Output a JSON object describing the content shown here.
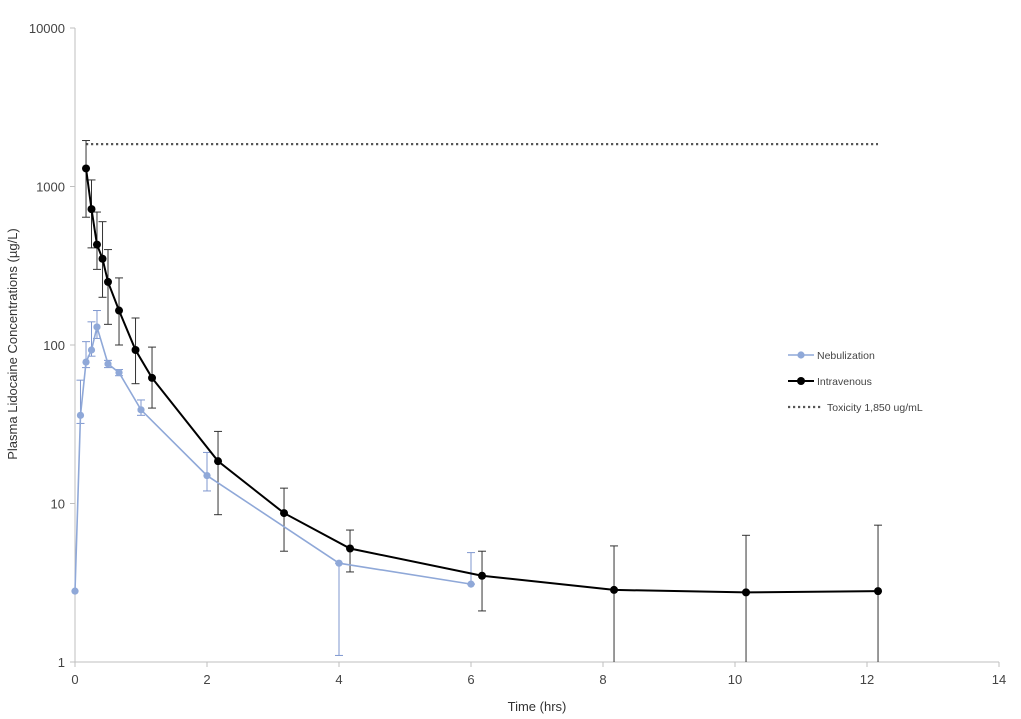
{
  "chart_data": {
    "type": "line",
    "title": "",
    "xlabel": "Time (hrs)",
    "ylabel": "Plasma Lidocaine Concentrations (µg/L)",
    "xlim": [
      0,
      14
    ],
    "ylim": [
      1,
      10000
    ],
    "yscale": "log",
    "grid": false,
    "legend_position": "right",
    "x_ticks": [
      "0",
      "2",
      "4",
      "6",
      "8",
      "10",
      "12",
      "14"
    ],
    "x_tick_values": [
      0,
      2,
      4,
      6,
      8,
      10,
      12,
      14
    ],
    "y_ticks": [
      "1",
      "10",
      "100",
      "1000",
      "10000"
    ],
    "y_tick_values": [
      1,
      10,
      100,
      1000,
      10000
    ],
    "series": [
      {
        "name": "Nebulization",
        "color": "#8FA8D8",
        "x": [
          0,
          0.083,
          0.167,
          0.25,
          0.333,
          0.5,
          0.667,
          1,
          2,
          4,
          6
        ],
        "y": [
          2.8,
          36,
          78,
          93,
          130,
          76,
          67,
          39,
          15,
          4.2,
          3.1
        ],
        "err_low": [
          2.8,
          32,
          72,
          85,
          110,
          72,
          64,
          36,
          12,
          1.1,
          3.1
        ],
        "err_high": [
          2.8,
          60,
          105,
          140,
          165,
          80,
          70,
          45,
          21,
          4.2,
          4.9
        ]
      },
      {
        "name": "Intravenous",
        "color": "#000000",
        "x": [
          0.167,
          0.25,
          0.333,
          0.417,
          0.5,
          0.667,
          0.917,
          1.167,
          2.167,
          3.167,
          4.167,
          6.167,
          8.167,
          10.167,
          12.167
        ],
        "y": [
          1300,
          720,
          430,
          350,
          250,
          165,
          93,
          62,
          18.5,
          8.7,
          5.2,
          3.5,
          2.85,
          2.75,
          2.8
        ],
        "err_low": [
          640,
          410,
          300,
          200,
          135,
          100,
          57,
          40,
          8.5,
          5,
          3.7,
          2.1,
          1,
          1,
          1
        ],
        "err_high": [
          1950,
          1100,
          690,
          600,
          400,
          265,
          148,
          97,
          28.5,
          12.5,
          6.8,
          5,
          5.4,
          6.3,
          7.3
        ]
      },
      {
        "name": "Toxicity 1,850 ug/mL",
        "color": "#555555",
        "style": "dotted",
        "x": [
          0.167,
          12.167
        ],
        "y": [
          1850,
          1850
        ]
      }
    ]
  }
}
